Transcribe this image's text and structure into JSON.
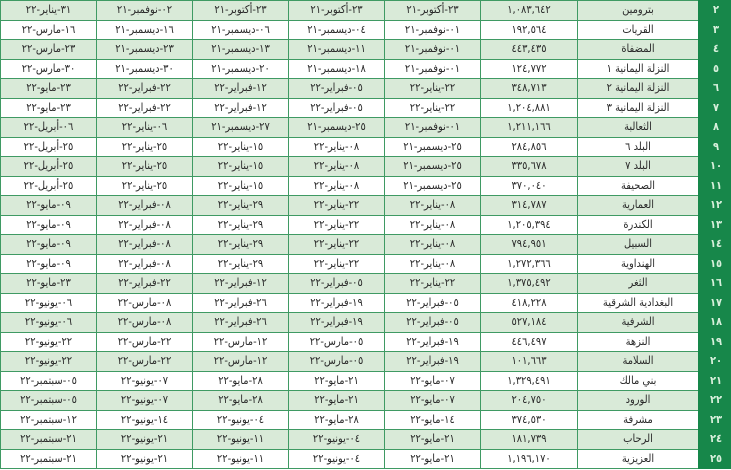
{
  "colors": {
    "index_bg": "#17874a",
    "row_alt": "#d9ead8",
    "border": "#3f9a63"
  },
  "rows": [
    {
      "index": "٢",
      "name": "بترومين",
      "count": "١,٠٨٣,٦٤٢",
      "dates": [
        "٢٣-أكتوبر-٢١",
        "٢٣-أكتوبر-٢١",
        "٢٣-أكتوبر-٢١",
        "٠٢-نوفمبر-٢١",
        "٣١-يناير-٢٢"
      ]
    },
    {
      "index": "٣",
      "name": "القريات",
      "count": "١٩٢,٥٦٤",
      "dates": [
        "٠١-نوفمبر-٢١",
        "٠٤-ديسمبر-٢١",
        "٠٦-ديسمبر-٢١",
        "١٦-ديسمبر-٢١",
        "١٦-مارس-٢٢"
      ]
    },
    {
      "index": "٤",
      "name": "المضفاة",
      "count": "٤٤٣,٤٣٥",
      "dates": [
        "٠١-نوفمبر-٢١",
        "١١-ديسمبر-٢١",
        "١٣-ديسمبر-٢١",
        "٢٣-ديسمبر-٢١",
        "٢٣-مارس-٢٢"
      ]
    },
    {
      "index": "٥",
      "name": "النزلة اليمانية ١",
      "count": "١٢٤,٧٧٢",
      "dates": [
        "٠١-نوفمبر-٢١",
        "١٨-ديسمبر-٢١",
        "٢٠-ديسمبر-٢١",
        "٣٠-ديسمبر-٢١",
        "٣٠-مارس-٢٢"
      ]
    },
    {
      "index": "٦",
      "name": "النزلة اليمانية ٢",
      "count": "٣٤٨,٧١٣",
      "dates": [
        "٢٢-يناير-٢٢",
        "٠٥-فبراير-٢٢",
        "١٢-فبراير-٢٢",
        "٢٢-فبراير-٢٢",
        "٢٣-مايو-٢٢"
      ]
    },
    {
      "index": "٧",
      "name": "النزلة اليمانية ٣",
      "count": "١,٢٠٤,٨٨١",
      "dates": [
        "٢٢-يناير-٢٢",
        "٠٥-فبراير-٢٢",
        "١٢-فبراير-٢٢",
        "٢٢-فبراير-٢٢",
        "٢٣-مايو-٢٢"
      ]
    },
    {
      "index": "٨",
      "name": "الثعالبة",
      "count": "١,٢١١,١٦٦",
      "dates": [
        "٠١-نوفمبر-٢١",
        "٢٥-ديسمبر-٢١",
        "٢٧-ديسمبر-٢١",
        "٠٦-يناير-٢٢",
        "٠٦-أبريل-٢٢"
      ]
    },
    {
      "index": "٩",
      "name": "البلد ٦",
      "count": "٢٨٤,٨٥٦",
      "dates": [
        "٢٥-ديسمبر-٢١",
        "٠٨-يناير-٢٢",
        "١٥-يناير-٢٢",
        "٢٥-يناير-٢٢",
        "٢٥-أبريل-٢٢"
      ]
    },
    {
      "index": "١٠",
      "name": "البلد ٧",
      "count": "٣٣٥,٦٧٨",
      "dates": [
        "٢٥-ديسمبر-٢١",
        "٠٨-يناير-٢٢",
        "١٥-يناير-٢٢",
        "٢٥-يناير-٢٢",
        "٢٥-أبريل-٢٢"
      ]
    },
    {
      "index": "١١",
      "name": "الصحيفة",
      "count": "٣٧٠,٠٤٠",
      "dates": [
        "٢٥-ديسمبر-٢١",
        "٠٨-يناير-٢٢",
        "١٥-يناير-٢٢",
        "٢٥-يناير-٢٢",
        "٢٥-أبريل-٢٢"
      ]
    },
    {
      "index": "١٢",
      "name": "العمارية",
      "count": "٣١٤,٧٨٧",
      "dates": [
        "٠٨-يناير-٢٢",
        "٢٢-يناير-٢٢",
        "٢٩-يناير-٢٢",
        "٠٨-فبراير-٢٢",
        "٠٩-مايو-٢٢"
      ]
    },
    {
      "index": "١٣",
      "name": "الكندرة",
      "count": "١,٢٠٥,٣٩٤",
      "dates": [
        "٠٨-يناير-٢٢",
        "٢٢-يناير-٢٢",
        "٢٩-يناير-٢٢",
        "٠٨-فبراير-٢٢",
        "٠٩-مايو-٢٢"
      ]
    },
    {
      "index": "١٤",
      "name": "السبيل",
      "count": "٧٩٤,٩٥١",
      "dates": [
        "٠٨-يناير-٢٢",
        "٢٢-يناير-٢٢",
        "٢٩-يناير-٢٢",
        "٠٨-فبراير-٢٢",
        "٠٩-مايو-٢٢"
      ]
    },
    {
      "index": "١٥",
      "name": "الهنداوية",
      "count": "١,٢٧٢,٣٦٦",
      "dates": [
        "٠٨-يناير-٢٢",
        "٢٢-يناير-٢٢",
        "٢٩-يناير-٢٢",
        "٠٨-فبراير-٢٢",
        "٠٩-مايو-٢٢"
      ]
    },
    {
      "index": "١٦",
      "name": "الثغر",
      "count": "١,٣٧٥,٤٩٢",
      "dates": [
        "٢٢-يناير-٢٢",
        "٠٥-فبراير-٢٢",
        "١٢-فبراير-٢٢",
        "٢٢-فبراير-٢٢",
        "٢٣-مايو-٢٢"
      ]
    },
    {
      "index": "١٧",
      "name": "البغدادية الشرقية",
      "count": "٤١٨,٢٢٨",
      "dates": [
        "٠٥-فبراير-٢٢",
        "١٩-فبراير-٢٢",
        "٢٦-فبراير-٢٢",
        "٠٨-مارس-٢٢",
        "٠٦-يونيو-٢٢"
      ]
    },
    {
      "index": "١٨",
      "name": "الشرفية",
      "count": "٥٢٧,١٨٤",
      "dates": [
        "٠٥-فبراير-٢٢",
        "١٩-فبراير-٢٢",
        "٢٦-فبراير-٢٢",
        "٠٨-مارس-٢٢",
        "٠٦-يونيو-٢٢"
      ]
    },
    {
      "index": "١٩",
      "name": "النزهة",
      "count": "٤٤٦,٤٩٧",
      "dates": [
        "١٩-فبراير-٢٢",
        "٠٥-مارس-٢٢",
        "١٢-مارس-٢٢",
        "٢٢-مارس-٢٢",
        "٢٢-يونيو-٢٢"
      ]
    },
    {
      "index": "٢٠",
      "name": "السلامة",
      "count": "١٠١,٦٦٣",
      "dates": [
        "١٩-فبراير-٢٢",
        "٠٥-مارس-٢٢",
        "١٢-مارس-٢٢",
        "٢٢-مارس-٢٢",
        "٢٢-يونيو-٢٢"
      ]
    },
    {
      "index": "٢١",
      "name": "بني مالك",
      "count": "١,٣٢٩,٤٩١",
      "dates": [
        "٠٧-مايو-٢٢",
        "٢١-مايو-٢٢",
        "٢٨-مايو-٢٢",
        "٠٧-يونيو-٢٢",
        "٠٥-سبتمبر-٢٢"
      ]
    },
    {
      "index": "٢٢",
      "name": "الورود",
      "count": "٢٠٤,٧٥٠",
      "dates": [
        "٠٧-مايو-٢٢",
        "٢١-مايو-٢٢",
        "٢٨-مايو-٢٢",
        "٠٧-يونيو-٢٢",
        "٠٥-سبتمبر-٢٢"
      ]
    },
    {
      "index": "٢٣",
      "name": "مشرفة",
      "count": "٣٧٤,٥٣٠",
      "dates": [
        "١٤-مايو-٢٢",
        "٢٨-مايو-٢٢",
        "٠٤-يونيو-٢٢",
        "١٤-يونيو-٢٢",
        "١٢-سبتمبر-٢٢"
      ]
    },
    {
      "index": "٢٤",
      "name": "الرحاب",
      "count": "١٨١,٧٣٩",
      "dates": [
        "٢١-مايو-٢٢",
        "٠٤-يونيو-٢٢",
        "١١-يونيو-٢٢",
        "٢١-يونيو-٢٢",
        "٢١-سبتمبر-٢٢"
      ]
    },
    {
      "index": "٢٥",
      "name": "العزيزية",
      "count": "١,١٩٦,١٧٠",
      "dates": [
        "٢١-مايو-٢٢",
        "٠٤-يونيو-٢٢",
        "١١-يونيو-٢٢",
        "٢١-يونيو-٢٢",
        "٢١-سبتمبر-٢٢"
      ]
    }
  ]
}
